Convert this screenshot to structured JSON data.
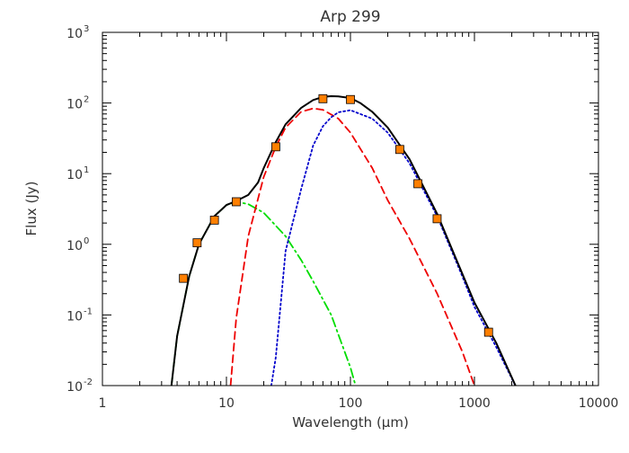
{
  "chart_data": {
    "type": "line",
    "title": "Arp 299",
    "xlabel": "Wavelength (μm)",
    "ylabel": "Flux (Jy)",
    "xscale": "log",
    "yscale": "log",
    "xlim": [
      1,
      10000
    ],
    "ylim": [
      0.01,
      1000
    ],
    "grid": false,
    "legend": "none",
    "x_ticks": [
      {
        "value": 1,
        "label": "1"
      },
      {
        "value": 10,
        "label": "10"
      },
      {
        "value": 100,
        "label": "100"
      },
      {
        "value": 1000,
        "label": "1000"
      },
      {
        "value": 10000,
        "label": "10000"
      }
    ],
    "y_ticks": [
      {
        "value": 0.01,
        "base": "10",
        "exp": "-2"
      },
      {
        "value": 0.1,
        "base": "10",
        "exp": "-1"
      },
      {
        "value": 1,
        "base": "10",
        "exp": "0"
      },
      {
        "value": 10,
        "base": "10",
        "exp": "1"
      },
      {
        "value": 100,
        "base": "10",
        "exp": "2"
      },
      {
        "value": 1000,
        "base": "10",
        "exp": "3"
      }
    ],
    "points": {
      "marker": "square",
      "color": "#ff7f00",
      "x": [
        4.5,
        5.8,
        8,
        12,
        25,
        60,
        100,
        250,
        350,
        500,
        1300
      ],
      "y": [
        0.33,
        1.05,
        2.2,
        4.0,
        24,
        115,
        112,
        22,
        7.2,
        2.3,
        0.057
      ]
    },
    "series": [
      {
        "style": "dash-dot",
        "color": "#00dd00",
        "x": [
          3.6,
          4,
          5,
          6,
          8,
          10,
          12,
          15,
          20,
          30,
          40,
          50,
          70,
          100,
          110
        ],
        "y": [
          0.01,
          0.05,
          0.35,
          1.0,
          2.5,
          3.6,
          4.0,
          3.7,
          2.8,
          1.3,
          0.6,
          0.3,
          0.1,
          0.018,
          0.01
        ]
      },
      {
        "style": "dashed",
        "color": "#ee0000",
        "x": [
          10.8,
          12,
          15,
          20,
          25,
          30,
          40,
          50,
          60,
          80,
          100,
          150,
          200,
          300,
          500,
          800,
          1000
        ],
        "y": [
          0.01,
          0.09,
          1.3,
          9,
          24,
          45,
          75,
          84,
          80,
          60,
          38,
          12,
          4.2,
          1.2,
          0.2,
          0.03,
          0.01
        ]
      },
      {
        "style": "dotted",
        "color": "#0000cc",
        "x": [
          23,
          25,
          30,
          40,
          50,
          60,
          70,
          80,
          100,
          150,
          200,
          300,
          500,
          800,
          1000,
          1500,
          2200
        ],
        "y": [
          0.01,
          0.025,
          0.8,
          6,
          25,
          47,
          63,
          74,
          79,
          60,
          38,
          14,
          2.5,
          0.35,
          0.13,
          0.035,
          0.009
        ]
      },
      {
        "style": "solid",
        "color": "#000000",
        "x": [
          3.6,
          4,
          5,
          6,
          8,
          10,
          12,
          15,
          18,
          20,
          25,
          30,
          40,
          50,
          60,
          70,
          80,
          100,
          120,
          150,
          200,
          300,
          500,
          800,
          1000,
          1500,
          2200
        ],
        "y": [
          0.01,
          0.05,
          0.35,
          1.0,
          2.5,
          3.6,
          4.1,
          5.0,
          7.5,
          12,
          28,
          50,
          85,
          110,
          122,
          125,
          124,
          118,
          100,
          75,
          45,
          16,
          2.7,
          0.38,
          0.15,
          0.04,
          0.009
        ]
      }
    ]
  }
}
